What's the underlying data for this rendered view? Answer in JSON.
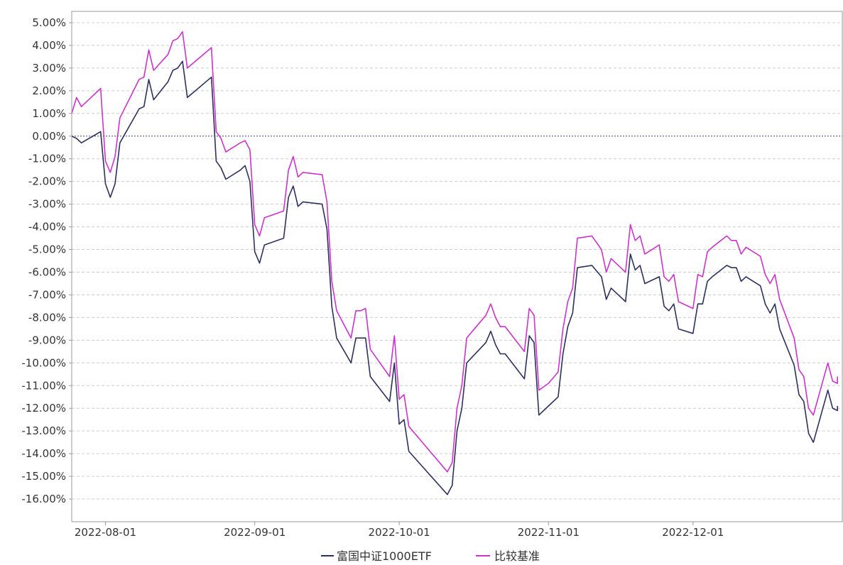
{
  "chart_data": {
    "type": "line",
    "ylim": [
      -17,
      5.5
    ],
    "y_ticks": [
      5,
      4,
      3,
      2,
      1,
      0,
      -1,
      -2,
      -3,
      -4,
      -5,
      -6,
      -7,
      -8,
      -9,
      -10,
      -11,
      -12,
      -13,
      -14,
      -15,
      -16
    ],
    "y_tick_labels": [
      "5.00%",
      "4.00%",
      "3.00%",
      "2.00%",
      "1.00%",
      "0.00%",
      "-1.00%",
      "-2.00%",
      "-3.00%",
      "-4.00%",
      "-5.00%",
      "-6.00%",
      "-7.00%",
      "-8.00%",
      "-9.00%",
      "-10.00%",
      "-11.00%",
      "-12.00%",
      "-13.00%",
      "-14.00%",
      "-15.00%",
      "-16.00%"
    ],
    "x_range": [
      "2022-07-25",
      "2022-12-31"
    ],
    "x_ticks": [
      "2022-08-01",
      "2022-09-01",
      "2022-10-01",
      "2022-11-01",
      "2022-12-01"
    ],
    "grid": true,
    "zero_line": true,
    "legend_position": "bottom",
    "series": [
      {
        "name": "富国中证1000ETF",
        "color": "#2d2f5e",
        "points": [
          [
            "2022-07-25",
            0.0
          ],
          [
            "2022-07-26",
            -0.1
          ],
          [
            "2022-07-27",
            -0.3
          ],
          [
            "2022-07-31",
            0.2
          ],
          [
            "2022-08-01",
            -2.1
          ],
          [
            "2022-08-02",
            -2.7
          ],
          [
            "2022-08-03",
            -2.1
          ],
          [
            "2022-08-04",
            -0.3
          ],
          [
            "2022-08-08",
            1.2
          ],
          [
            "2022-08-09",
            1.3
          ],
          [
            "2022-08-10",
            2.5
          ],
          [
            "2022-08-11",
            1.6
          ],
          [
            "2022-08-14",
            2.4
          ],
          [
            "2022-08-15",
            2.9
          ],
          [
            "2022-08-16",
            3.0
          ],
          [
            "2022-08-17",
            3.3
          ],
          [
            "2022-08-18",
            1.7
          ],
          [
            "2022-08-23",
            2.6
          ],
          [
            "2022-08-24",
            -1.1
          ],
          [
            "2022-08-25",
            -1.4
          ],
          [
            "2022-08-26",
            -1.9
          ],
          [
            "2022-08-29",
            -1.5
          ],
          [
            "2022-08-30",
            -1.3
          ],
          [
            "2022-08-31",
            -2.0
          ],
          [
            "2022-09-01",
            -5.1
          ],
          [
            "2022-09-02",
            -5.6
          ],
          [
            "2022-09-03",
            -4.8
          ],
          [
            "2022-09-07",
            -4.5
          ],
          [
            "2022-09-08",
            -2.7
          ],
          [
            "2022-09-09",
            -2.2
          ],
          [
            "2022-09-10",
            -3.1
          ],
          [
            "2022-09-11",
            -2.9
          ],
          [
            "2022-09-15",
            -3.0
          ],
          [
            "2022-09-16",
            -4.1
          ],
          [
            "2022-09-17",
            -7.5
          ],
          [
            "2022-09-18",
            -8.9
          ],
          [
            "2022-09-21",
            -10.0
          ],
          [
            "2022-09-22",
            -8.9
          ],
          [
            "2022-09-23",
            -8.9
          ],
          [
            "2022-09-24",
            -8.9
          ],
          [
            "2022-09-25",
            -10.6
          ],
          [
            "2022-09-29",
            -11.7
          ],
          [
            "2022-09-30",
            -10.0
          ],
          [
            "2022-10-01",
            -12.7
          ],
          [
            "2022-10-02",
            -12.5
          ],
          [
            "2022-10-03",
            -13.9
          ],
          [
            "2022-10-11",
            -15.8
          ],
          [
            "2022-10-12",
            -15.4
          ],
          [
            "2022-10-13",
            -13.0
          ],
          [
            "2022-10-14",
            -12.0
          ],
          [
            "2022-10-15",
            -10.0
          ],
          [
            "2022-10-19",
            -9.1
          ],
          [
            "2022-10-20",
            -8.6
          ],
          [
            "2022-10-21",
            -9.2
          ],
          [
            "2022-10-22",
            -9.6
          ],
          [
            "2022-10-23",
            -9.6
          ],
          [
            "2022-10-27",
            -10.7
          ],
          [
            "2022-10-28",
            -8.8
          ],
          [
            "2022-10-29",
            -9.1
          ],
          [
            "2022-10-30",
            -12.3
          ],
          [
            "2022-11-01",
            -11.9
          ],
          [
            "2022-11-03",
            -11.5
          ],
          [
            "2022-11-04",
            -9.6
          ],
          [
            "2022-11-05",
            -8.4
          ],
          [
            "2022-11-06",
            -7.8
          ],
          [
            "2022-11-07",
            -5.8
          ],
          [
            "2022-11-10",
            -5.7
          ],
          [
            "2022-11-12",
            -6.2
          ],
          [
            "2022-11-13",
            -7.2
          ],
          [
            "2022-11-14",
            -6.7
          ],
          [
            "2022-11-17",
            -7.3
          ],
          [
            "2022-11-18",
            -5.2
          ],
          [
            "2022-11-19",
            -5.9
          ],
          [
            "2022-11-20",
            -5.7
          ],
          [
            "2022-11-21",
            -6.5
          ],
          [
            "2022-11-24",
            -6.2
          ],
          [
            "2022-11-25",
            -7.5
          ],
          [
            "2022-11-26",
            -7.7
          ],
          [
            "2022-11-27",
            -7.4
          ],
          [
            "2022-11-28",
            -8.5
          ],
          [
            "2022-12-01",
            -8.7
          ],
          [
            "2022-12-02",
            -7.4
          ],
          [
            "2022-12-03",
            -7.4
          ],
          [
            "2022-12-04",
            -6.4
          ],
          [
            "2022-12-05",
            -6.2
          ],
          [
            "2022-12-08",
            -5.7
          ],
          [
            "2022-12-09",
            -5.8
          ],
          [
            "2022-12-10",
            -5.8
          ],
          [
            "2022-12-11",
            -6.4
          ],
          [
            "2022-12-12",
            -6.2
          ],
          [
            "2022-12-15",
            -6.6
          ],
          [
            "2022-12-16",
            -7.4
          ],
          [
            "2022-12-17",
            -7.8
          ],
          [
            "2022-12-18",
            -7.4
          ],
          [
            "2022-12-19",
            -8.5
          ],
          [
            "2022-12-22",
            -10.1
          ],
          [
            "2022-12-23",
            -11.4
          ],
          [
            "2022-12-24",
            -11.7
          ],
          [
            "2022-12-25",
            -13.1
          ],
          [
            "2022-12-26",
            -13.5
          ],
          [
            "2022-12-29",
            -11.2
          ],
          [
            "2022-12-30",
            -12.0
          ],
          [
            "2022-12-31",
            -12.1
          ],
          [
            "2022-12-31",
            -11.9
          ]
        ]
      },
      {
        "name": "比较基准",
        "color": "#cc33cc",
        "points": [
          [
            "2022-07-25",
            1.0
          ],
          [
            "2022-07-26",
            1.7
          ],
          [
            "2022-07-27",
            1.3
          ],
          [
            "2022-07-31",
            2.1
          ],
          [
            "2022-08-01",
            -1.1
          ],
          [
            "2022-08-02",
            -1.6
          ],
          [
            "2022-08-03",
            -0.9
          ],
          [
            "2022-08-04",
            0.8
          ],
          [
            "2022-08-08",
            2.5
          ],
          [
            "2022-08-09",
            2.6
          ],
          [
            "2022-08-10",
            3.8
          ],
          [
            "2022-08-11",
            2.9
          ],
          [
            "2022-08-14",
            3.6
          ],
          [
            "2022-08-15",
            4.2
          ],
          [
            "2022-08-16",
            4.3
          ],
          [
            "2022-08-17",
            4.6
          ],
          [
            "2022-08-18",
            3.0
          ],
          [
            "2022-08-23",
            3.9
          ],
          [
            "2022-08-24",
            0.2
          ],
          [
            "2022-08-25",
            -0.1
          ],
          [
            "2022-08-26",
            -0.7
          ],
          [
            "2022-08-29",
            -0.3
          ],
          [
            "2022-08-30",
            -0.2
          ],
          [
            "2022-08-31",
            -0.6
          ],
          [
            "2022-09-01",
            -3.9
          ],
          [
            "2022-09-02",
            -4.4
          ],
          [
            "2022-09-03",
            -3.6
          ],
          [
            "2022-09-07",
            -3.3
          ],
          [
            "2022-09-08",
            -1.5
          ],
          [
            "2022-09-09",
            -0.9
          ],
          [
            "2022-09-10",
            -1.8
          ],
          [
            "2022-09-11",
            -1.6
          ],
          [
            "2022-09-15",
            -1.7
          ],
          [
            "2022-09-16",
            -2.9
          ],
          [
            "2022-09-17",
            -6.4
          ],
          [
            "2022-09-18",
            -7.7
          ],
          [
            "2022-09-21",
            -8.9
          ],
          [
            "2022-09-22",
            -7.7
          ],
          [
            "2022-09-23",
            -7.7
          ],
          [
            "2022-09-24",
            -7.6
          ],
          [
            "2022-09-25",
            -9.4
          ],
          [
            "2022-09-29",
            -10.6
          ],
          [
            "2022-09-30",
            -8.8
          ],
          [
            "2022-10-01",
            -11.6
          ],
          [
            "2022-10-02",
            -11.4
          ],
          [
            "2022-10-03",
            -12.8
          ],
          [
            "2022-10-11",
            -14.8
          ],
          [
            "2022-10-12",
            -14.4
          ],
          [
            "2022-10-13",
            -12.0
          ],
          [
            "2022-10-14",
            -11.0
          ],
          [
            "2022-10-15",
            -8.9
          ],
          [
            "2022-10-19",
            -7.9
          ],
          [
            "2022-10-20",
            -7.4
          ],
          [
            "2022-10-21",
            -8.0
          ],
          [
            "2022-10-22",
            -8.4
          ],
          [
            "2022-10-23",
            -8.4
          ],
          [
            "2022-10-27",
            -9.5
          ],
          [
            "2022-10-28",
            -7.6
          ],
          [
            "2022-10-29",
            -7.9
          ],
          [
            "2022-10-30",
            -11.2
          ],
          [
            "2022-11-01",
            -10.9
          ],
          [
            "2022-11-03",
            -10.4
          ],
          [
            "2022-11-04",
            -8.5
          ],
          [
            "2022-11-05",
            -7.3
          ],
          [
            "2022-11-06",
            -6.7
          ],
          [
            "2022-11-07",
            -4.5
          ],
          [
            "2022-11-10",
            -4.4
          ],
          [
            "2022-11-12",
            -5.0
          ],
          [
            "2022-11-13",
            -6.0
          ],
          [
            "2022-11-14",
            -5.4
          ],
          [
            "2022-11-17",
            -6.0
          ],
          [
            "2022-11-18",
            -3.9
          ],
          [
            "2022-11-19",
            -4.6
          ],
          [
            "2022-11-20",
            -4.4
          ],
          [
            "2022-11-21",
            -5.2
          ],
          [
            "2022-11-24",
            -4.8
          ],
          [
            "2022-11-25",
            -6.2
          ],
          [
            "2022-11-26",
            -6.4
          ],
          [
            "2022-11-27",
            -6.1
          ],
          [
            "2022-11-28",
            -7.3
          ],
          [
            "2022-12-01",
            -7.6
          ],
          [
            "2022-12-02",
            -6.1
          ],
          [
            "2022-12-03",
            -6.2
          ],
          [
            "2022-12-04",
            -5.1
          ],
          [
            "2022-12-05",
            -4.9
          ],
          [
            "2022-12-08",
            -4.4
          ],
          [
            "2022-12-09",
            -4.6
          ],
          [
            "2022-12-10",
            -4.6
          ],
          [
            "2022-12-11",
            -5.2
          ],
          [
            "2022-12-12",
            -4.9
          ],
          [
            "2022-12-15",
            -5.3
          ],
          [
            "2022-12-16",
            -6.1
          ],
          [
            "2022-12-17",
            -6.5
          ],
          [
            "2022-12-18",
            -6.1
          ],
          [
            "2022-12-19",
            -7.2
          ],
          [
            "2022-12-22",
            -8.9
          ],
          [
            "2022-12-23",
            -10.3
          ],
          [
            "2022-12-24",
            -10.6
          ],
          [
            "2022-12-25",
            -12.0
          ],
          [
            "2022-12-26",
            -12.3
          ],
          [
            "2022-12-29",
            -10.0
          ],
          [
            "2022-12-30",
            -10.8
          ],
          [
            "2022-12-31",
            -10.9
          ],
          [
            "2022-12-31",
            -10.6
          ]
        ]
      }
    ]
  }
}
